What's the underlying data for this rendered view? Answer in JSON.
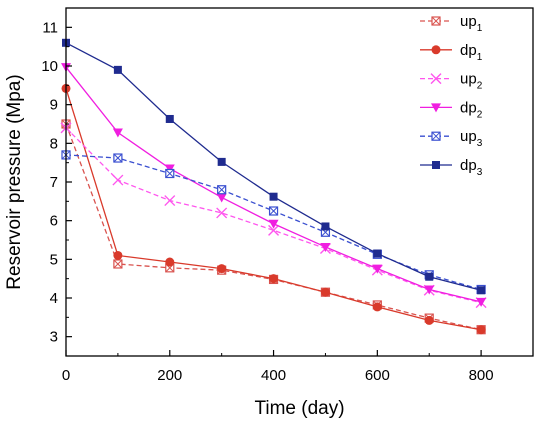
{
  "chart_data": {
    "type": "line",
    "xlabel": "Time (day)",
    "ylabel": "Reservoir pressure (Mpa)",
    "xlim": [
      0,
      900
    ],
    "ylim": [
      2.5,
      11.5
    ],
    "xticks": [
      0,
      200,
      400,
      600,
      800
    ],
    "yticks": [
      3,
      4,
      5,
      6,
      7,
      8,
      9,
      10,
      11
    ],
    "grid": false,
    "legend_position": "top-right",
    "series": [
      {
        "name": "up",
        "sub": "1",
        "color": "#d9534f",
        "dash": true,
        "marker": "square-open",
        "x": [
          0,
          100,
          200,
          300,
          400,
          500,
          600,
          700,
          800
        ],
        "y": [
          8.5,
          4.88,
          4.78,
          4.72,
          4.48,
          4.15,
          3.82,
          3.48,
          3.18
        ]
      },
      {
        "name": "dp",
        "sub": "1",
        "color": "#d93a2b",
        "dash": false,
        "marker": "circle-filled",
        "x": [
          0,
          100,
          200,
          300,
          400,
          500,
          600,
          700,
          800
        ],
        "y": [
          9.42,
          5.1,
          4.93,
          4.76,
          4.5,
          4.15,
          3.77,
          3.42,
          3.18
        ]
      },
      {
        "name": "up",
        "sub": "2",
        "color": "#ff55ee",
        "dash": true,
        "marker": "x",
        "x": [
          0,
          100,
          200,
          300,
          400,
          500,
          600,
          700,
          800
        ],
        "y": [
          8.4,
          7.05,
          6.52,
          6.2,
          5.75,
          5.28,
          4.72,
          4.2,
          3.88
        ]
      },
      {
        "name": "dp",
        "sub": "2",
        "color": "#f01ee0",
        "dash": false,
        "marker": "triangle-down-filled",
        "x": [
          0,
          100,
          200,
          300,
          400,
          500,
          600,
          700,
          800
        ],
        "y": [
          9.97,
          8.28,
          7.35,
          6.6,
          5.92,
          5.32,
          4.76,
          4.22,
          3.9
        ]
      },
      {
        "name": "up",
        "sub": "3",
        "color": "#3a4fd0",
        "dash": true,
        "marker": "square-open",
        "x": [
          0,
          100,
          200,
          300,
          400,
          500,
          600,
          700,
          800
        ],
        "y": [
          7.7,
          7.62,
          7.22,
          6.8,
          6.25,
          5.7,
          5.13,
          4.6,
          4.22
        ]
      },
      {
        "name": "dp",
        "sub": "3",
        "color": "#1f2b8f",
        "dash": false,
        "marker": "square-filled",
        "x": [
          0,
          100,
          200,
          300,
          400,
          500,
          600,
          700,
          800
        ],
        "y": [
          10.6,
          9.9,
          8.63,
          7.52,
          6.62,
          5.85,
          5.15,
          4.55,
          4.2
        ]
      }
    ]
  }
}
